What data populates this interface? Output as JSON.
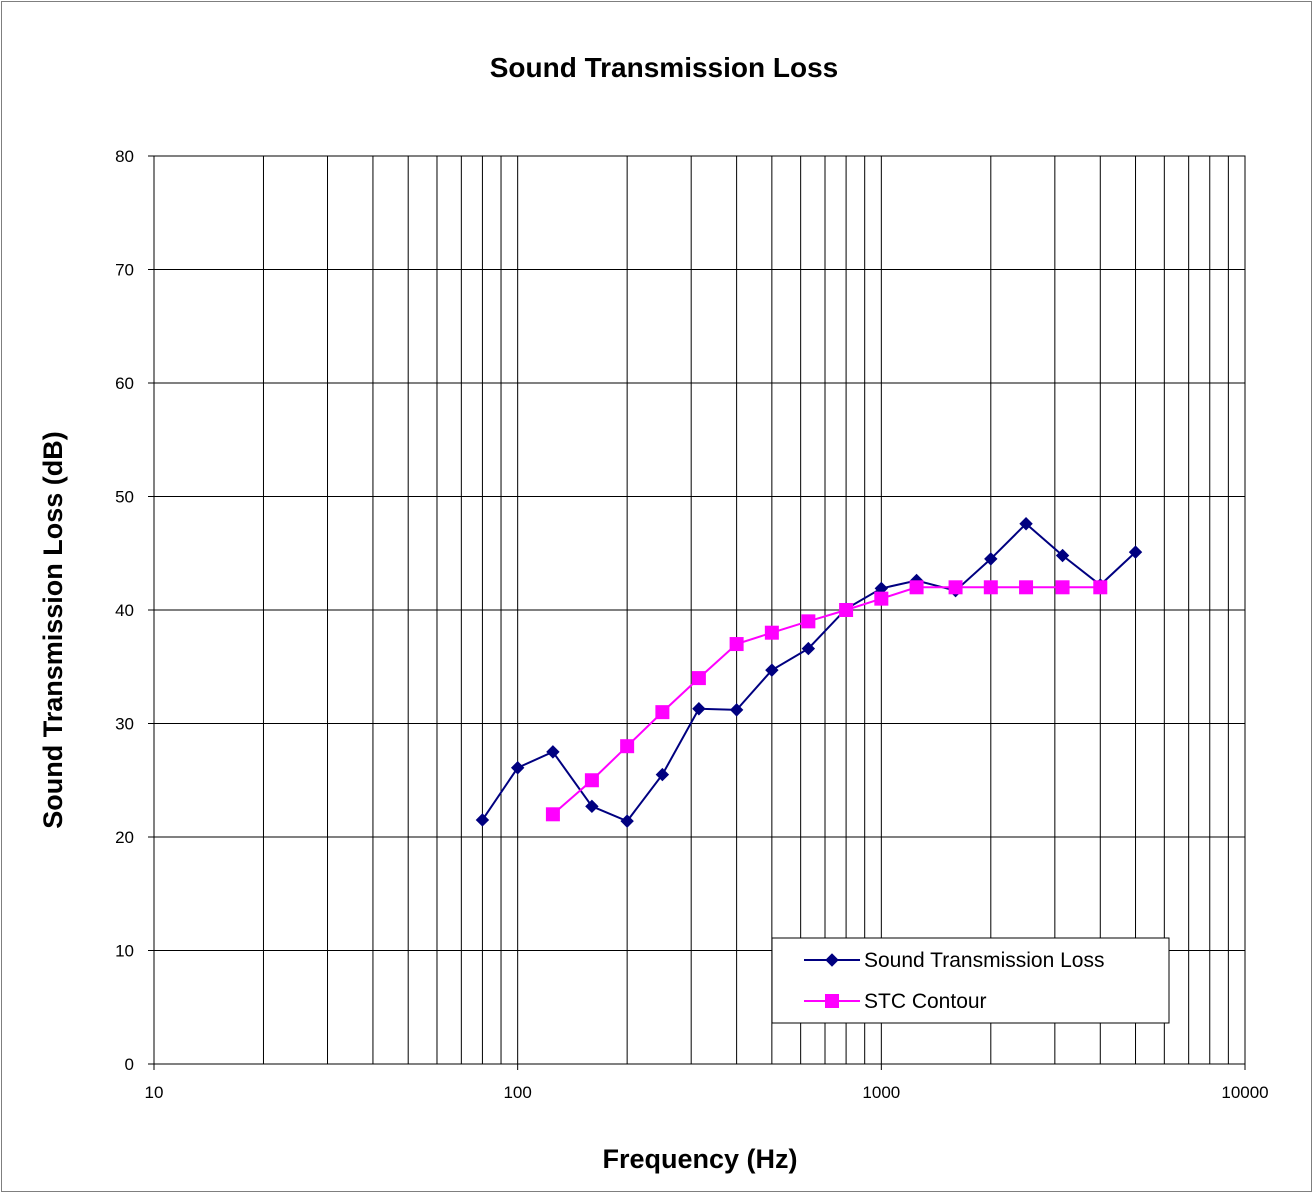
{
  "chart_data": {
    "type": "line",
    "title": "Sound Transmission Loss",
    "xlabel": "Frequency (Hz)",
    "ylabel": "Sound Transmission Loss (dB)",
    "x_scale": "log",
    "xlim": [
      10,
      10000
    ],
    "ylim": [
      0,
      80
    ],
    "x_ticks": [
      "10",
      "100",
      "1000",
      "10000"
    ],
    "y_ticks": [
      "0",
      "10",
      "20",
      "30",
      "40",
      "50",
      "60",
      "70",
      "80"
    ],
    "grid": true,
    "legend_position": "bottom-right",
    "series": [
      {
        "name": "Sound Transmission Loss",
        "color": "#000080",
        "marker": "diamond",
        "x": [
          80,
          100,
          125,
          160,
          200,
          250,
          315,
          400,
          500,
          630,
          800,
          1000,
          1250,
          1600,
          2000,
          2500,
          3150,
          4000,
          5000
        ],
        "y": [
          21.5,
          26.1,
          27.5,
          22.7,
          21.4,
          25.5,
          31.3,
          31.2,
          34.7,
          36.6,
          40.1,
          41.9,
          42.6,
          41.7,
          44.5,
          47.6,
          44.8,
          42.2,
          45.1
        ]
      },
      {
        "name": "STC Contour",
        "color": "#ff00ff",
        "marker": "square",
        "x": [
          125,
          160,
          200,
          250,
          315,
          400,
          500,
          630,
          800,
          1000,
          1250,
          1600,
          2000,
          2500,
          3150,
          4000
        ],
        "y": [
          22,
          25,
          28,
          31,
          34,
          37,
          38,
          39,
          40,
          41,
          42,
          42,
          42,
          42,
          42,
          42
        ]
      }
    ]
  }
}
